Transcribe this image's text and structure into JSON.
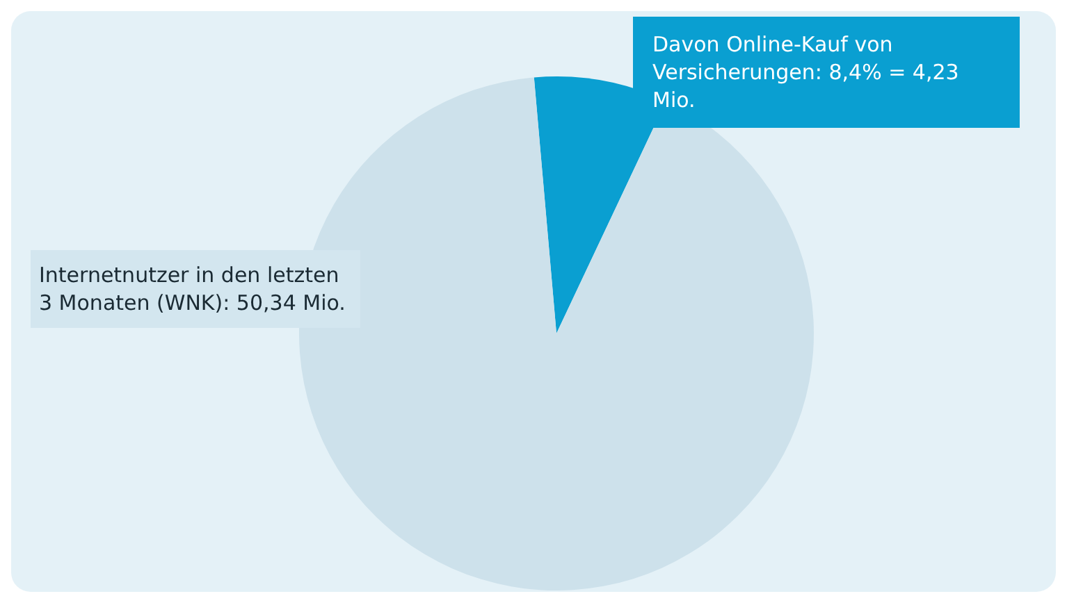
{
  "chart_data": {
    "type": "pie",
    "categories": [
      "Davon Online-Kauf von Versicherungen: 8,4% = 4,23 Mio.",
      "Internetnutzer in den letzten 3 Monaten (WNK): 50,34 Mio."
    ],
    "values": [
      8.4,
      91.6
    ],
    "colors": [
      "#0a9fd1",
      "#cde1eb"
    ],
    "legend": false
  }
}
